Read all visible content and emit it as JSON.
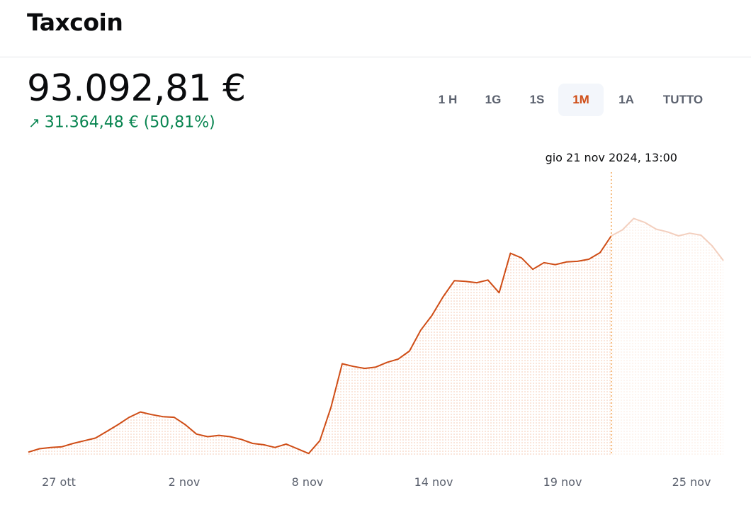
{
  "app": {
    "title": "Taxcoin"
  },
  "price": {
    "value": "93.092,81 €",
    "change_arrow": "↗",
    "change_text": "31.364,48 € (50,81%)"
  },
  "ranges": {
    "items": [
      {
        "label": "1 H",
        "active": false
      },
      {
        "label": "1G",
        "active": false
      },
      {
        "label": "1S",
        "active": false
      },
      {
        "label": "1M",
        "active": true
      },
      {
        "label": "1A",
        "active": false
      },
      {
        "label": "TUTTO",
        "active": false
      }
    ]
  },
  "colors": {
    "line": "#cf4d16",
    "line_faded": "#f3cfbe",
    "accent_up": "#098551",
    "hover_line": "#f2a34f"
  },
  "chart_data": {
    "type": "area",
    "x_tick_labels": [
      "27 ott",
      "2 nov",
      "8 nov",
      "14 nov",
      "19 nov",
      "25 nov"
    ],
    "hover_label": "gio 21 nov 2024, 13:00",
    "hover_index": 52,
    "ylim": [
      59000,
      101000
    ],
    "values": [
      59500,
      60000,
      60200,
      60300,
      60800,
      61200,
      61600,
      62600,
      63600,
      64700,
      65500,
      65100,
      64800,
      64700,
      63600,
      62200,
      61800,
      62000,
      61800,
      61400,
      60800,
      60600,
      60200,
      60700,
      60000,
      59300,
      61200,
      66200,
      72700,
      72300,
      72000,
      72200,
      72900,
      73400,
      74600,
      77700,
      79900,
      82700,
      85100,
      85000,
      84800,
      85200,
      83300,
      89200,
      88500,
      86800,
      87800,
      87500,
      87900,
      88000,
      88300,
      89300,
      91800,
      92700,
      94400,
      93800,
      92800,
      92400,
      91800,
      92200,
      91900,
      90300,
      88100
    ]
  },
  "icons": {
    "trend_up": "arrow-up-right-icon"
  }
}
